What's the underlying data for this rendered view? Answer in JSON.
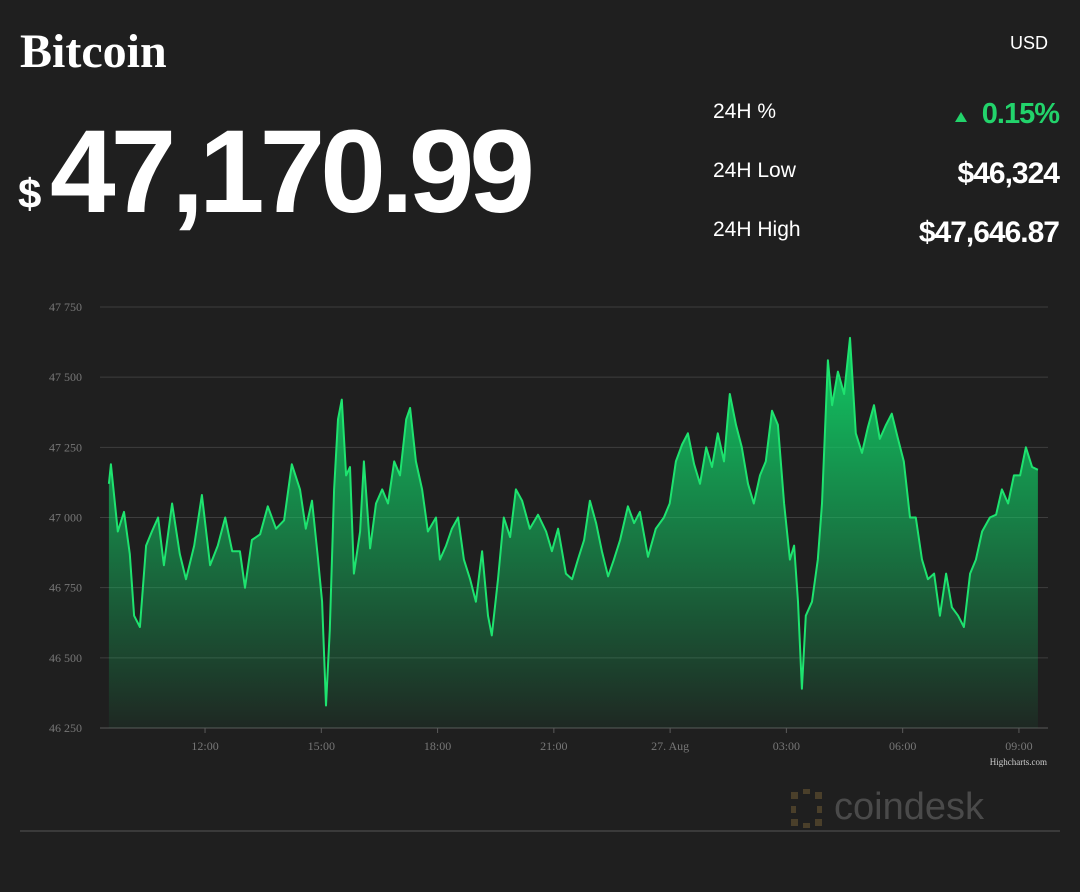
{
  "header": {
    "title": "Bitcoin",
    "currency": "USD",
    "price_symbol": "$",
    "price": "47,170.99",
    "stats": [
      {
        "label": "24H %",
        "value": "0.15%"
      },
      {
        "label": "24H Low",
        "value": "$46,324"
      },
      {
        "label": "24H High",
        "value": "$47,646.87"
      }
    ]
  },
  "chart_data": {
    "type": "area",
    "color": "#1ee36f",
    "grid": true,
    "credits": "Highcharts.com",
    "watermark": "coindesk",
    "xlim": [
      9.29,
      33.75
    ],
    "ylim": [
      46250,
      47750
    ],
    "xticks": [
      {
        "value": 12,
        "label": "12:00"
      },
      {
        "value": 15,
        "label": "15:00"
      },
      {
        "value": 18,
        "label": "18:00"
      },
      {
        "value": 21,
        "label": "21:00"
      },
      {
        "value": 24,
        "label": "27. Aug"
      },
      {
        "value": 27,
        "label": "03:00"
      },
      {
        "value": 30,
        "label": "06:00"
      },
      {
        "value": 33,
        "label": "09:00"
      }
    ],
    "yticks": [
      {
        "value": 46250,
        "label": "46 250"
      },
      {
        "value": 46500,
        "label": "46 500"
      },
      {
        "value": 46750,
        "label": "46 750"
      },
      {
        "value": 47000,
        "label": "47 000"
      },
      {
        "value": 47250,
        "label": "47 250"
      },
      {
        "value": 47500,
        "label": "47 500"
      },
      {
        "value": 47750,
        "label": "47 750"
      }
    ],
    "x": [
      9.52,
      9.57,
      9.75,
      9.91,
      10.06,
      10.17,
      10.32,
      10.48,
      10.63,
      10.79,
      10.94,
      11.15,
      11.35,
      11.51,
      11.72,
      11.92,
      12.13,
      12.33,
      12.52,
      12.7,
      12.9,
      13.03,
      13.21,
      13.42,
      13.62,
      13.83,
      14.04,
      14.24,
      14.45,
      14.6,
      14.76,
      14.91,
      15.02,
      15.12,
      15.22,
      15.33,
      15.43,
      15.53,
      15.64,
      15.74,
      15.84,
      16.0,
      16.1,
      16.26,
      16.41,
      16.57,
      16.72,
      16.88,
      17.03,
      17.19,
      17.29,
      17.44,
      17.6,
      17.75,
      17.96,
      18.06,
      18.22,
      18.37,
      18.53,
      18.68,
      18.84,
      18.99,
      19.15,
      19.3,
      19.4,
      19.56,
      19.71,
      19.87,
      20.02,
      20.18,
      20.38,
      20.59,
      20.8,
      20.95,
      21.11,
      21.31,
      21.47,
      21.62,
      21.78,
      21.93,
      22.09,
      22.24,
      22.4,
      22.55,
      22.71,
      22.91,
      23.07,
      23.22,
      23.43,
      23.63,
      23.84,
      23.99,
      24.15,
      24.31,
      24.46,
      24.62,
      24.77,
      24.93,
      25.08,
      25.23,
      25.39,
      25.54,
      25.7,
      25.85,
      26.01,
      26.16,
      26.32,
      26.47,
      26.63,
      26.78,
      26.94,
      27.09,
      27.2,
      27.3,
      27.4,
      27.5,
      27.66,
      27.81,
      27.92,
      28.07,
      28.18,
      28.33,
      28.49,
      28.64,
      28.79,
      28.95,
      29.1,
      29.26,
      29.41,
      29.57,
      29.72,
      29.88,
      30.03,
      30.19,
      30.34,
      30.5,
      30.65,
      30.81,
      30.96,
      31.12,
      31.27,
      31.43,
      31.58,
      31.74,
      31.89,
      32.05,
      32.25,
      32.41,
      32.56,
      32.72,
      32.87,
      33.03,
      33.18,
      33.34,
      33.49
    ],
    "values": [
      47120,
      47190,
      46950,
      47020,
      46870,
      46650,
      46610,
      46900,
      46950,
      47000,
      46830,
      47050,
      46870,
      46780,
      46900,
      47080,
      46830,
      46900,
      47000,
      46880,
      46880,
      46750,
      46920,
      46940,
      47040,
      46960,
      46990,
      47190,
      47100,
      46960,
      47060,
      46860,
      46700,
      46330,
      46600,
      47100,
      47350,
      47420,
      47150,
      47180,
      46800,
      46950,
      47200,
      46890,
      47050,
      47100,
      47050,
      47200,
      47150,
      47350,
      47390,
      47200,
      47100,
      46950,
      47000,
      46850,
      46900,
      46960,
      47000,
      46850,
      46780,
      46700,
      46880,
      46650,
      46580,
      46780,
      47000,
      46930,
      47100,
      47060,
      46960,
      47010,
      46950,
      46880,
      46960,
      46800,
      46780,
      46850,
      46920,
      47060,
      46980,
      46880,
      46790,
      46850,
      46920,
      47040,
      46980,
      47020,
      46860,
      46960,
      47000,
      47050,
      47200,
      47260,
      47300,
      47190,
      47120,
      47250,
      47180,
      47300,
      47200,
      47440,
      47330,
      47250,
      47120,
      47050,
      47150,
      47200,
      47380,
      47330,
      47050,
      46850,
      46900,
      46700,
      46390,
      46650,
      46700,
      46850,
      47050,
      47560,
      47400,
      47520,
      47440,
      47640,
      47300,
      47230,
      47320,
      47400,
      47280,
      47330,
      47370,
      47280,
      47200,
      47000,
      47000,
      46850,
      46780,
      46800,
      46650,
      46800,
      46680,
      46650,
      46610,
      46800,
      46850,
      46950,
      47000,
      47010,
      47100,
      47050,
      47150,
      47150,
      47250,
      47180,
      47170
    ]
  }
}
